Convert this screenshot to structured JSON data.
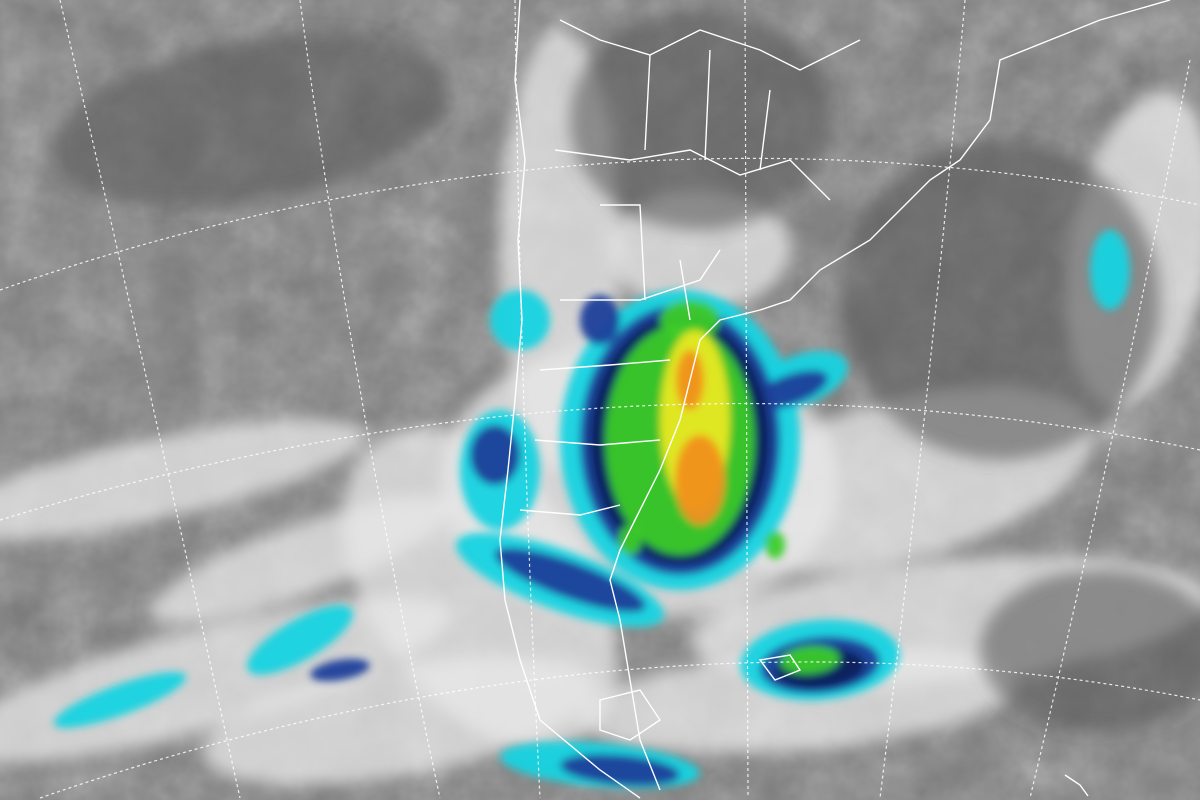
{
  "map": {
    "palette": {
      "background_gray": "#7d7d7d",
      "dark_gray": "#5a5a5a",
      "cloud_white": "#e8e8e8",
      "cyan": "#19d3e0",
      "blue": "#1a3f9a",
      "navy": "#0d1f5c",
      "green": "#3ccc2a",
      "yellow": "#e8e820",
      "orange": "#f09020",
      "border_white": "#ffffff"
    }
  }
}
